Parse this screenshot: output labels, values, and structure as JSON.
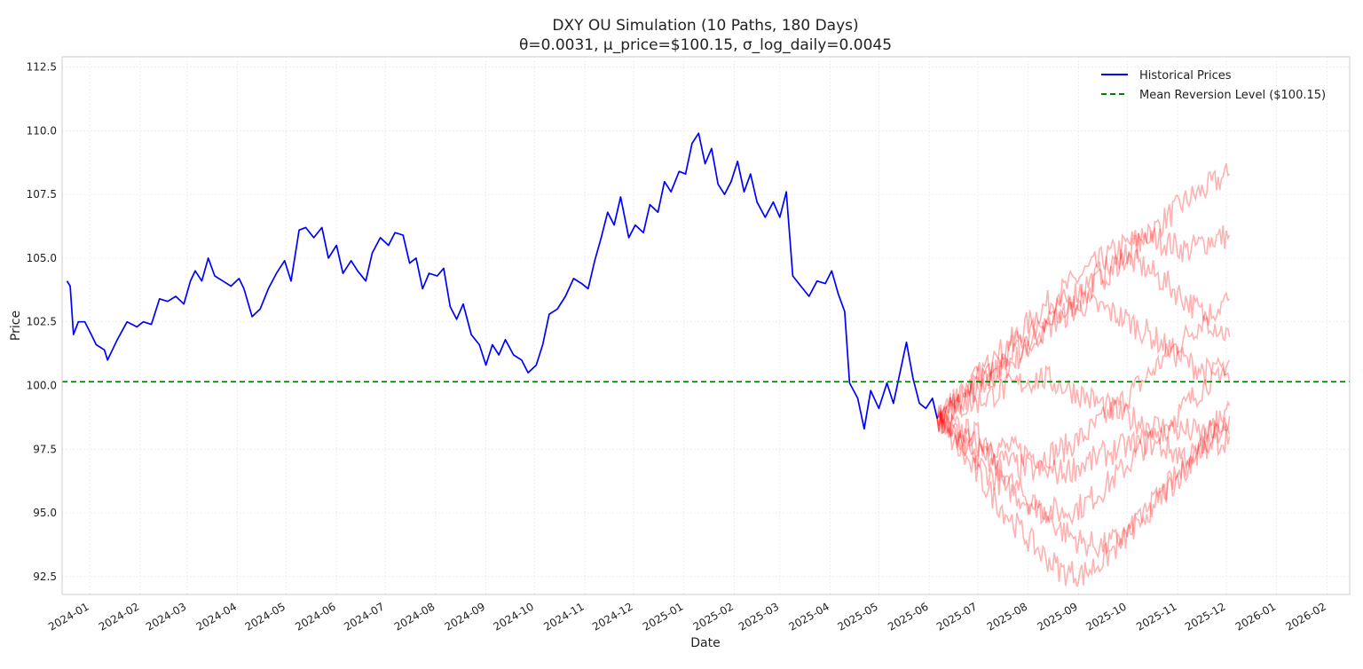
{
  "chart_data": {
    "type": "line",
    "title": "DXY OU Simulation (10 Paths, 180 Days)",
    "subtitle": "θ=0.0031, μ_price=$100.15, σ_log_daily=0.0045",
    "xlabel": "Date",
    "ylabel": "Price",
    "ylim": [
      91.8,
      112.9
    ],
    "xlim": [
      "2023-12-15",
      "2026-02-15"
    ],
    "x_ticks": [
      "2024-01",
      "2024-02",
      "2024-03",
      "2024-04",
      "2024-05",
      "2024-06",
      "2024-07",
      "2024-08",
      "2024-09",
      "2024-10",
      "2024-11",
      "2024-12",
      "2025-01",
      "2025-02",
      "2025-03",
      "2025-04",
      "2025-05",
      "2025-06",
      "2025-07",
      "2025-08",
      "2025-09",
      "2025-10",
      "2025-11",
      "2025-12",
      "2026-01",
      "2026-02"
    ],
    "y_ticks": [
      92.5,
      95.0,
      97.5,
      100.0,
      102.5,
      105.0,
      107.5,
      110.0,
      112.5
    ],
    "grid": true,
    "legend_position": "top-right",
    "mean_reversion_level": 100.15,
    "colors": {
      "historical": "#0000ff",
      "mean": "#008000",
      "simulated": "#ff0000"
    },
    "legend": [
      {
        "label": "Historical Prices",
        "style": "solid",
        "color": "#0000ff"
      },
      {
        "label": "Mean Reversion Level ($100.15)",
        "style": "dashed",
        "color": "#008000"
      }
    ],
    "series": [
      {
        "name": "Historical Prices",
        "points": [
          [
            "2023-12-18",
            104.1
          ],
          [
            "2023-12-20",
            103.9
          ],
          [
            "2023-12-22",
            102.0
          ],
          [
            "2023-12-25",
            102.5
          ],
          [
            "2023-12-29",
            102.5
          ],
          [
            "2024-01-02",
            102.0
          ],
          [
            "2024-01-05",
            101.6
          ],
          [
            "2024-01-10",
            101.4
          ],
          [
            "2024-01-12",
            101.0
          ],
          [
            "2024-01-18",
            101.8
          ],
          [
            "2024-01-24",
            102.5
          ],
          [
            "2024-01-30",
            102.3
          ],
          [
            "2024-02-03",
            102.5
          ],
          [
            "2024-02-08",
            102.4
          ],
          [
            "2024-02-13",
            103.4
          ],
          [
            "2024-02-18",
            103.3
          ],
          [
            "2024-02-23",
            103.5
          ],
          [
            "2024-02-28",
            103.2
          ],
          [
            "2024-03-03",
            104.1
          ],
          [
            "2024-03-06",
            104.5
          ],
          [
            "2024-03-10",
            104.1
          ],
          [
            "2024-03-14",
            105.0
          ],
          [
            "2024-03-18",
            104.3
          ],
          [
            "2024-03-23",
            104.1
          ],
          [
            "2024-03-28",
            103.9
          ],
          [
            "2024-04-02",
            104.2
          ],
          [
            "2024-04-05",
            103.8
          ],
          [
            "2024-04-10",
            102.7
          ],
          [
            "2024-04-15",
            103.0
          ],
          [
            "2024-04-20",
            103.8
          ],
          [
            "2024-04-25",
            104.4
          ],
          [
            "2024-04-30",
            104.9
          ],
          [
            "2024-05-04",
            104.1
          ],
          [
            "2024-05-09",
            106.1
          ],
          [
            "2024-05-13",
            106.2
          ],
          [
            "2024-05-18",
            105.8
          ],
          [
            "2024-05-23",
            106.2
          ],
          [
            "2024-05-27",
            105.0
          ],
          [
            "2024-06-01",
            105.5
          ],
          [
            "2024-06-05",
            104.4
          ],
          [
            "2024-06-10",
            104.9
          ],
          [
            "2024-06-14",
            104.5
          ],
          [
            "2024-06-19",
            104.1
          ],
          [
            "2024-06-23",
            105.2
          ],
          [
            "2024-06-28",
            105.8
          ],
          [
            "2024-07-03",
            105.5
          ],
          [
            "2024-07-07",
            106.0
          ],
          [
            "2024-07-12",
            105.9
          ],
          [
            "2024-07-16",
            104.8
          ],
          [
            "2024-07-20",
            105.0
          ],
          [
            "2024-07-24",
            103.8
          ],
          [
            "2024-07-28",
            104.4
          ],
          [
            "2024-08-02",
            104.3
          ],
          [
            "2024-08-06",
            104.6
          ],
          [
            "2024-08-10",
            103.1
          ],
          [
            "2024-08-14",
            102.6
          ],
          [
            "2024-08-18",
            103.2
          ],
          [
            "2024-08-23",
            102.0
          ],
          [
            "2024-08-28",
            101.6
          ],
          [
            "2024-09-01",
            100.8
          ],
          [
            "2024-09-05",
            101.6
          ],
          [
            "2024-09-09",
            101.2
          ],
          [
            "2024-09-13",
            101.8
          ],
          [
            "2024-09-18",
            101.2
          ],
          [
            "2024-09-23",
            101.0
          ],
          [
            "2024-09-27",
            100.5
          ],
          [
            "2024-10-02",
            100.8
          ],
          [
            "2024-10-06",
            101.6
          ],
          [
            "2024-10-10",
            102.8
          ],
          [
            "2024-10-15",
            103.0
          ],
          [
            "2024-10-20",
            103.5
          ],
          [
            "2024-10-25",
            104.2
          ],
          [
            "2024-10-30",
            104.0
          ],
          [
            "2024-11-03",
            103.8
          ],
          [
            "2024-11-07",
            104.9
          ],
          [
            "2024-11-11",
            105.8
          ],
          [
            "2024-11-15",
            106.8
          ],
          [
            "2024-11-19",
            106.3
          ],
          [
            "2024-11-23",
            107.4
          ],
          [
            "2024-11-28",
            105.8
          ],
          [
            "2024-12-02",
            106.3
          ],
          [
            "2024-12-07",
            106.0
          ],
          [
            "2024-12-11",
            107.1
          ],
          [
            "2024-12-16",
            106.8
          ],
          [
            "2024-12-20",
            108.0
          ],
          [
            "2024-12-24",
            107.6
          ],
          [
            "2024-12-29",
            108.4
          ],
          [
            "2025-01-02",
            108.3
          ],
          [
            "2025-01-06",
            109.5
          ],
          [
            "2025-01-10",
            109.9
          ],
          [
            "2025-01-14",
            108.7
          ],
          [
            "2025-01-18",
            109.3
          ],
          [
            "2025-01-22",
            107.9
          ],
          [
            "2025-01-26",
            107.5
          ],
          [
            "2025-01-30",
            108.0
          ],
          [
            "2025-02-03",
            108.8
          ],
          [
            "2025-02-07",
            107.6
          ],
          [
            "2025-02-11",
            108.3
          ],
          [
            "2025-02-15",
            107.2
          ],
          [
            "2025-02-20",
            106.6
          ],
          [
            "2025-02-25",
            107.2
          ],
          [
            "2025-03-01",
            106.6
          ],
          [
            "2025-03-05",
            107.6
          ],
          [
            "2025-03-09",
            104.3
          ],
          [
            "2025-03-14",
            103.9
          ],
          [
            "2025-03-19",
            103.5
          ],
          [
            "2025-03-24",
            104.1
          ],
          [
            "2025-03-29",
            104.0
          ],
          [
            "2025-04-02",
            104.5
          ],
          [
            "2025-04-06",
            103.6
          ],
          [
            "2025-04-10",
            102.9
          ],
          [
            "2025-04-13",
            100.1
          ],
          [
            "2025-04-18",
            99.5
          ],
          [
            "2025-04-22",
            98.3
          ],
          [
            "2025-04-26",
            99.8
          ],
          [
            "2025-05-01",
            99.1
          ],
          [
            "2025-05-06",
            100.1
          ],
          [
            "2025-05-10",
            99.3
          ],
          [
            "2025-05-14",
            100.5
          ],
          [
            "2025-05-18",
            101.7
          ],
          [
            "2025-05-22",
            100.3
          ],
          [
            "2025-05-26",
            99.3
          ],
          [
            "2025-05-30",
            99.1
          ],
          [
            "2025-06-03",
            99.5
          ],
          [
            "2025-06-06",
            98.7
          ]
        ]
      }
    ],
    "simulated_paths": {
      "count": 10,
      "start": "2025-06-06",
      "end": "2025-12-03",
      "start_value": 98.7,
      "endpoints": [
        108.3,
        105.9,
        103.4,
        101.9,
        101.0,
        100.1,
        99.2,
        98.8,
        98.1,
        98.0
      ],
      "values": [
        [
          98.7,
          99.3,
          99.9,
          100.5,
          101.2,
          102.0,
          102.8,
          103.5,
          104.3,
          105.1,
          105.8,
          106.6,
          107.3,
          107.8,
          108.3
        ],
        [
          98.7,
          99.6,
          100.4,
          101.3,
          102.1,
          103.0,
          103.7,
          104.4,
          105.0,
          105.5,
          105.9,
          105.6,
          105.3,
          105.7,
          105.9
        ],
        [
          98.7,
          98.3,
          98.0,
          97.6,
          97.4,
          97.2,
          97.5,
          98.0,
          98.7,
          99.5,
          100.3,
          101.2,
          102.0,
          102.8,
          103.4
        ],
        [
          98.7,
          99.5,
          100.3,
          101.0,
          101.8,
          102.5,
          103.2,
          103.9,
          104.5,
          105.0,
          104.6,
          104.0,
          103.3,
          102.6,
          101.9
        ],
        [
          98.7,
          97.8,
          96.9,
          96.2,
          95.6,
          95.2,
          95.0,
          95.3,
          96.0,
          96.8,
          97.7,
          98.5,
          99.3,
          100.2,
          101.0
        ],
        [
          98.7,
          99.4,
          100.0,
          100.7,
          101.4,
          102.1,
          102.7,
          103.2,
          103.0,
          102.6,
          102.1,
          101.5,
          100.9,
          100.5,
          100.1
        ],
        [
          98.7,
          98.0,
          97.3,
          96.6,
          95.8,
          95.0,
          94.3,
          93.8,
          93.7,
          94.1,
          94.9,
          95.9,
          96.9,
          98.1,
          99.2
        ],
        [
          98.7,
          97.5,
          96.4,
          95.3,
          94.3,
          93.4,
          92.7,
          92.6,
          93.2,
          94.0,
          95.0,
          96.0,
          96.9,
          97.9,
          98.8
        ],
        [
          98.7,
          99.1,
          99.4,
          99.8,
          100.1,
          100.3,
          100.0,
          99.6,
          99.2,
          98.8,
          98.5,
          98.3,
          98.2,
          98.1,
          98.1
        ],
        [
          98.7,
          98.1,
          97.6,
          97.1,
          96.8,
          96.6,
          96.6,
          96.9,
          97.3,
          97.6,
          97.8,
          97.5,
          97.2,
          97.6,
          98.0
        ]
      ]
    }
  }
}
